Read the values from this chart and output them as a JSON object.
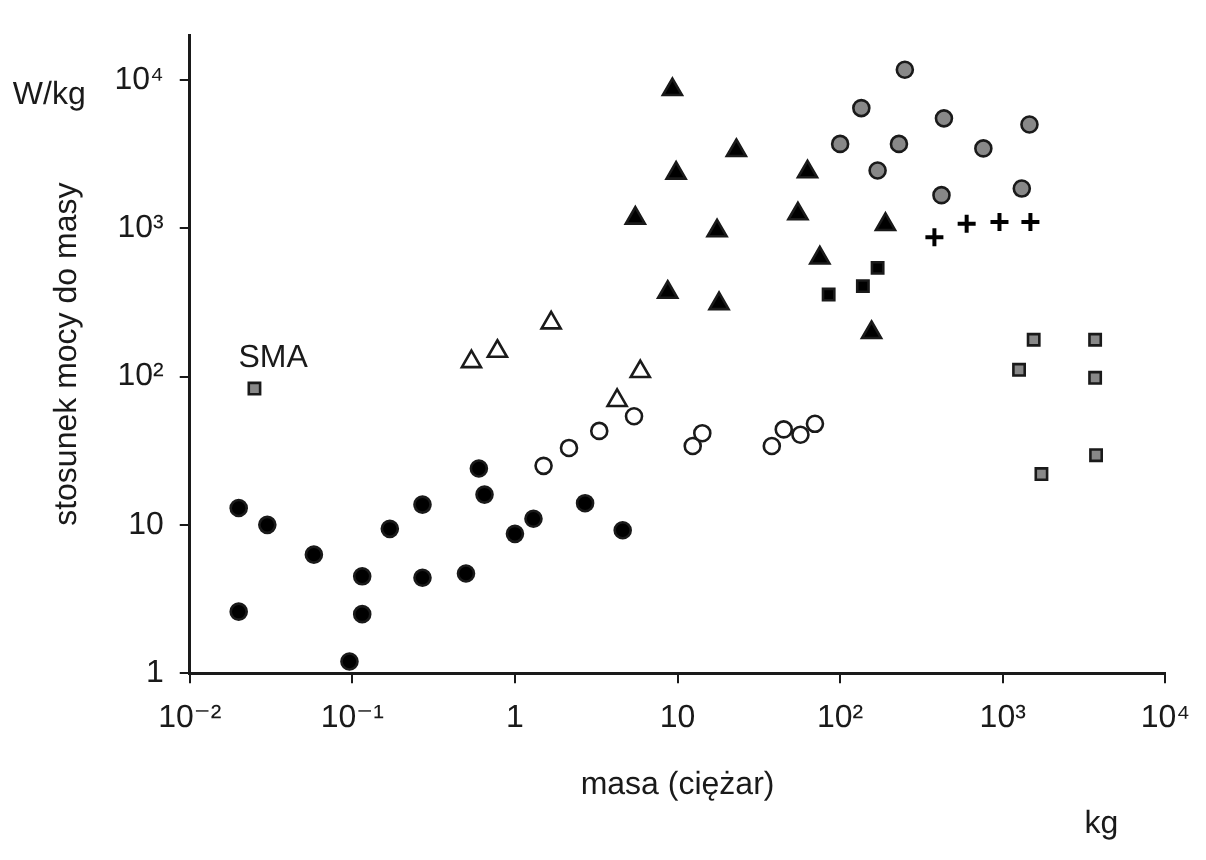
{
  "chart_data": {
    "type": "scatter",
    "xlabel": "masa (ciężar)",
    "ylabel": "stosunek mocy do masy",
    "log": "xy",
    "grid": false,
    "legend": false,
    "xlim": [
      0.01,
      10000
    ],
    "xticks": [
      {
        "value": 0.01,
        "label": "10⁻²"
      },
      {
        "value": 0.1,
        "label": "10⁻¹"
      },
      1,
      10,
      {
        "value": 100,
        "label": "10²"
      },
      {
        "value": 1000,
        "label": "10³"
      },
      {
        "value": 10000,
        "label": "10⁴"
      }
    ],
    "ylim": [
      1,
      20000
    ],
    "yticks": [
      1,
      10,
      {
        "value": 100,
        "label": "10²"
      },
      {
        "value": 1000,
        "label": "10³"
      },
      {
        "value": 10000,
        "label": "10⁴"
      }
    ],
    "annotations": [
      "W/kg",
      "kg",
      {
        "text": "SMA",
        "x": 0.025,
        "y": 83
      }
    ],
    "series": [
      {
        "marker": "circle",
        "color": "#000000",
        "x": [
          0.02,
          0.02,
          0.03,
          0.058,
          0.115,
          0.115,
          0.096,
          0.17,
          0.27,
          0.27,
          0.5,
          0.6,
          0.65,
          1.0,
          1.3,
          2.7,
          4.6
        ],
        "values": [
          13,
          2.6,
          10,
          6.3,
          4.5,
          2.5,
          1.2,
          9.4,
          13.7,
          4.4,
          4.7,
          24,
          16,
          8.7,
          11,
          14,
          9.2
        ]
      },
      {
        "marker": "circle",
        "color": "#ffffff",
        "x": [
          1.5,
          2.15,
          3.3,
          5.4,
          12.4,
          14.2,
          38,
          45,
          57,
          70
        ],
        "values": [
          25,
          33,
          43,
          54,
          34,
          41.5,
          34,
          44,
          40.5,
          48
        ]
      },
      {
        "marker": "triangle",
        "color": "#ffffff",
        "x": [
          0.54,
          0.78,
          1.67,
          5.9,
          4.25
        ],
        "values": [
          126,
          148,
          230,
          108,
          69
        ]
      },
      {
        "marker": "square",
        "color": "#888888",
        "x": [
          0.025
        ],
        "values": [
          83
        ]
      },
      {
        "marker": "triangle",
        "color": "#000000",
        "x": [
          9.3,
          9.8,
          23,
          5.5,
          17.5,
          8.7,
          18,
          63,
          55,
          190,
          75,
          156
        ],
        "values": [
          8600,
          2350,
          3340,
          1170,
          960,
          370,
          310,
          2400,
          1250,
          1060,
          630,
          198
        ]
      },
      {
        "marker": "square",
        "color": "#000000",
        "x": [
          85,
          138,
          170
        ],
        "values": [
          357,
          407,
          540
        ]
      },
      {
        "marker": "cross",
        "color": "#000000",
        "x": [
          380,
          600,
          955,
          1480
        ],
        "values": [
          870,
          1070,
          1100,
          1100
        ]
      },
      {
        "marker": "circle",
        "color": "#888888",
        "x": [
          250,
          135,
          435,
          1460,
          100,
          230,
          760,
          170,
          420,
          1310
        ],
        "values": [
          11700,
          6450,
          5500,
          5000,
          3700,
          3700,
          3450,
          2450,
          1670,
          1850
        ]
      },
      {
        "marker": "square",
        "color": "#888888",
        "x": [
          1550,
          3700,
          1260,
          3700,
          1730,
          3750
        ],
        "values": [
          177,
          177,
          111,
          98,
          22,
          29.5
        ]
      }
    ]
  }
}
